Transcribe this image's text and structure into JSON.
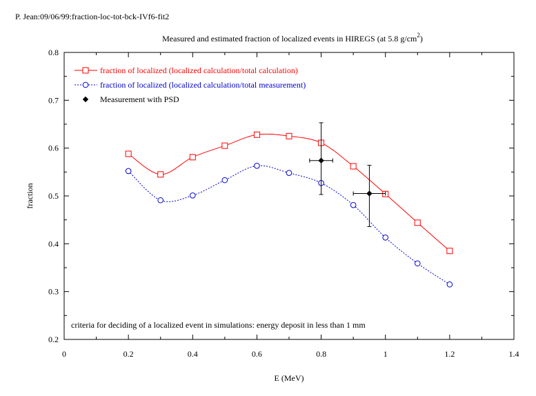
{
  "header_tag": "P. Jean:09/06/99:fraction-loc-tot-bck-IVf6-fit2",
  "chart_data": {
    "type": "scatter",
    "title": "Measured and estimated fraction of localized events in HIREGS (at 5.8 g/cm",
    "title_sup": "2",
    "title_end": ")",
    "xlabel": "E (MeV)",
    "ylabel": "fraction",
    "xlim": [
      0,
      1.4
    ],
    "ylim": [
      0.2,
      0.8
    ],
    "xticks": [
      "0",
      "0.2",
      "0.4",
      "0.6",
      "0.8",
      "1",
      "1.2",
      "1.4"
    ],
    "yticks": [
      "0.2",
      "0.3",
      "0.4",
      "0.5",
      "0.6",
      "0.7",
      "0.8"
    ],
    "grid": false,
    "legend_position": "top-left",
    "annotation": "criteria for deciding of a localized event in simulations: energy deposit in less than 1 mm",
    "series": [
      {
        "name": "fraction of localized (localized calculation/total calculation)",
        "color": "#ff0000",
        "marker": "square",
        "line": "solid",
        "x": [
          0.2,
          0.3,
          0.4,
          0.5,
          0.6,
          0.7,
          0.8,
          0.9,
          1.0,
          1.1,
          1.2
        ],
        "y": [
          0.588,
          0.545,
          0.581,
          0.605,
          0.628,
          0.625,
          0.611,
          0.562,
          0.504,
          0.444,
          0.385
        ]
      },
      {
        "name": "fraction of localized (localized calculation/total measurement)",
        "color": "#0000cc",
        "marker": "circle",
        "line": "dotted",
        "x": [
          0.2,
          0.3,
          0.4,
          0.5,
          0.6,
          0.7,
          0.8,
          0.9,
          1.0,
          1.1,
          1.2
        ],
        "y": [
          0.552,
          0.491,
          0.501,
          0.533,
          0.563,
          0.548,
          0.527,
          0.481,
          0.413,
          0.359,
          0.315
        ]
      }
    ],
    "measurements": {
      "name": "Measurement with PSD",
      "color": "#000000",
      "marker": "diamond",
      "points": [
        {
          "x": 0.8,
          "y": 0.574,
          "xerr": 0.036,
          "yerr_low": 0.071,
          "yerr_high": 0.079
        },
        {
          "x": 0.95,
          "y": 0.505,
          "xerr": 0.05,
          "yerr_low": 0.069,
          "yerr_high": 0.059
        }
      ]
    }
  }
}
